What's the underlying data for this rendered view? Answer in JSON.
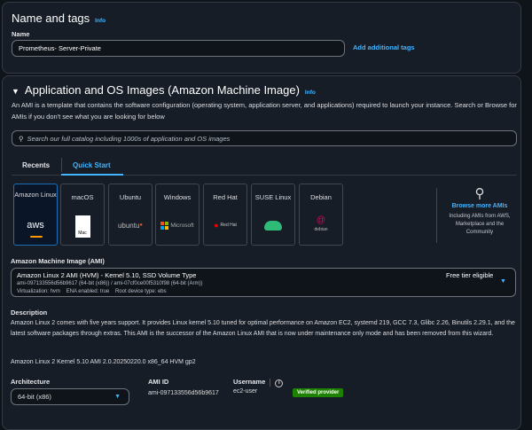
{
  "name_tags": {
    "title": "Name and tags",
    "info": "Info",
    "name_label": "Name",
    "name_value": "Prometheus- Server-Private",
    "add_tags": "Add additional tags"
  },
  "ami_section": {
    "title": "Application and OS Images (Amazon Machine Image)",
    "info": "Info",
    "description": "An AMI is a template that contains the software configuration (operating system, application server, and applications) required to launch your instance. Search or Browse for AMIs if you don't see what you are looking for below",
    "search_placeholder": "Search our full catalog including 1000s of application and OS images",
    "tabs": [
      {
        "label": "Recents",
        "active": false
      },
      {
        "label": "Quick Start",
        "active": true
      }
    ],
    "tiles": [
      {
        "label": "Amazon Linux",
        "logo": "aws",
        "selected": true
      },
      {
        "label": "macOS",
        "logo": "Mac"
      },
      {
        "label": "Ubuntu",
        "logo": "ubuntu"
      },
      {
        "label": "Windows",
        "logo": "Microsoft"
      },
      {
        "label": "Red Hat",
        "logo": "Red Hat"
      },
      {
        "label": "SUSE Linux",
        "logo": "suse"
      },
      {
        "label": "Debian",
        "logo": "debian"
      }
    ],
    "browse": {
      "label": "Browse more AMIs",
      "sub": "Including AMIs from AWS, Marketplace and the Community"
    },
    "ami_label": "Amazon Machine Image (AMI)",
    "ami_select": {
      "title": "Amazon Linux 2 AMI (HVM) - Kernel 5.10, SSD Volume Type",
      "ids": "ami-097133556d56b9617 (64-bit (x86)) / ami-07cf0ce00f5310f98 (64-bit (Arm))",
      "meta": "Virtualization: hvm    ENA enabled: true    Root device type: ebs",
      "badge": "Free tier eligible"
    },
    "desc_label": "Description",
    "desc_text": "Amazon Linux 2 comes with five years support. It provides Linux kernel 5.10 tuned for optimal performance on Amazon EC2, systemd 219, GCC 7.3, Glibc 2.26, Binutils 2.29.1, and the latest software packages through extras. This AMI is the successor of the Amazon Linux AMI that is now under maintenance only mode and has been removed from this wizard.",
    "version": "Amazon Linux 2 Kernel 5.10 AMI 2.0.20250220.0 x86_64 HVM gp2",
    "arch_label": "Architecture",
    "arch_value": "64-bit (x86)",
    "ami_id_label": "AMI ID",
    "ami_id_value": "ami-097133556d56b9617",
    "username_label": "Username",
    "username_value": "ec2-user",
    "verified": "Verified provider"
  },
  "colors": {
    "accent": "#42b4ff",
    "verified": "#1d8102",
    "background": "#0f141a",
    "panel": "#161d26"
  }
}
